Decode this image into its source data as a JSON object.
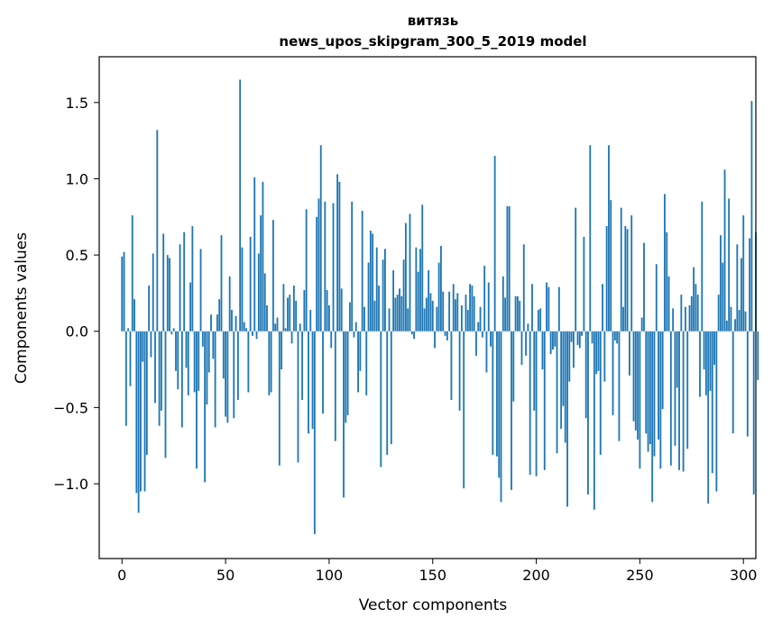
{
  "chart_data": {
    "type": "bar",
    "title": "витязь",
    "subtitle": "news_upos_skipgram_300_5_2019 model",
    "xlabel": "Vector components",
    "ylabel": "Components values",
    "xlim": [
      -11,
      306
    ],
    "ylim": [
      -1.49,
      1.8
    ],
    "xticks": [
      0,
      50,
      100,
      150,
      200,
      250,
      300
    ],
    "yticks": [
      -1.0,
      -0.5,
      0.0,
      0.5,
      1.0,
      1.5
    ],
    "xtick_labels": [
      "0",
      "50",
      "100",
      "150",
      "200",
      "250",
      "300"
    ],
    "ytick_labels": [
      "−1.0",
      "−0.5",
      "0.0",
      "0.5",
      "1.0",
      "1.5"
    ],
    "grid": false,
    "bar_color": "#1f77b4",
    "values": [
      0.49,
      0.52,
      -0.62,
      0.02,
      -0.36,
      0.76,
      0.21,
      -1.06,
      -1.19,
      -1.05,
      -0.2,
      -1.05,
      -0.81,
      0.3,
      -0.17,
      0.51,
      -0.47,
      1.32,
      -0.62,
      -0.52,
      0.64,
      -0.83,
      0.5,
      0.48,
      -0.02,
      0.02,
      -0.26,
      -0.38,
      0.57,
      -0.63,
      0.65,
      -0.24,
      -0.42,
      0.32,
      0.69,
      -0.4,
      -0.9,
      -0.39,
      0.54,
      -0.1,
      -0.99,
      -0.48,
      -0.27,
      0.11,
      -0.18,
      -0.63,
      0.11,
      0.21,
      0.63,
      -0.31,
      -0.56,
      -0.6,
      0.36,
      0.14,
      -0.57,
      0.1,
      -0.45,
      1.65,
      0.55,
      0.06,
      0.02,
      -0.4,
      0.62,
      -0.03,
      1.01,
      -0.05,
      0.51,
      0.76,
      0.98,
      0.38,
      0.17,
      -0.42,
      -0.4,
      0.73,
      0.05,
      0.09,
      -0.88,
      -0.25,
      0.31,
      0.02,
      0.22,
      0.24,
      -0.08,
      0.3,
      0.2,
      -0.86,
      0.05,
      -0.45,
      0.27,
      0.8,
      -0.67,
      0.14,
      -0.64,
      -1.33,
      0.75,
      0.87,
      1.22,
      -0.54,
      0.85,
      0.27,
      0.17,
      -0.11,
      0.84,
      -0.72,
      1.03,
      0.98,
      0.28,
      -1.09,
      -0.6,
      -0.55,
      0.19,
      0.85,
      -0.04,
      0.06,
      -0.4,
      -0.26,
      0.79,
      0.16,
      -0.42,
      0.45,
      0.66,
      0.64,
      0.2,
      0.55,
      0.3,
      -0.89,
      0.47,
      0.54,
      -0.81,
      0.15,
      -0.74,
      0.4,
      0.22,
      0.24,
      0.28,
      0.23,
      0.47,
      0.71,
      0.15,
      0.77,
      -0.02,
      -0.05,
      0.55,
      0.39,
      0.54,
      0.83,
      0.15,
      0.22,
      0.4,
      0.25,
      0.2,
      -0.11,
      0.16,
      0.45,
      0.56,
      0.26,
      -0.03,
      -0.06,
      0.26,
      -0.45,
      0.31,
      0.21,
      0.25,
      -0.52,
      0.17,
      -1.03,
      0.24,
      0.14,
      0.31,
      0.3,
      0.23,
      -0.16,
      0.06,
      0.16,
      -0.04,
      0.43,
      -0.27,
      0.32,
      -0.1,
      -0.81,
      1.15,
      -0.82,
      -0.96,
      -1.12,
      0.36,
      0.22,
      0.82,
      0.82,
      -1.04,
      -0.46,
      0.23,
      0.23,
      0.2,
      -0.22,
      0.57,
      -0.16,
      0.05,
      -0.94,
      0.31,
      -0.52,
      -0.95,
      0.14,
      0.15,
      -0.25,
      -0.91,
      0.32,
      0.29,
      -0.15,
      -0.12,
      -0.1,
      -0.8,
      0.29,
      -0.64,
      -0.49,
      -0.73,
      -1.15,
      -0.33,
      -0.07,
      -0.24,
      0.81,
      -0.09,
      -0.11,
      -0.03,
      0.62,
      -0.57,
      -1.07,
      1.22,
      -0.08,
      -1.17,
      -0.28,
      -0.26,
      -0.81,
      0.31,
      -0.33,
      0.69,
      1.22,
      0.86,
      -0.55,
      -0.06,
      -0.08,
      -0.72,
      0.81,
      0.16,
      0.69,
      0.67,
      -0.29,
      0.76,
      -0.59,
      -0.65,
      -0.71,
      -0.9,
      0.09,
      0.58,
      -0.67,
      -0.79,
      -0.74,
      -1.12,
      -0.82,
      0.44,
      -0.71,
      -0.9,
      -0.51,
      0.9,
      0.65,
      0.36,
      -0.88,
      0.15,
      -0.75,
      -0.37,
      -0.91,
      0.24,
      -0.92,
      0.16,
      -0.77,
      0.17,
      0.23,
      0.42,
      0.31,
      0.24,
      -0.43,
      0.85,
      -0.25,
      -0.42,
      -1.13,
      -0.39,
      -0.93,
      -0.22,
      -1.05,
      0.24,
      0.63,
      0.45,
      1.06,
      0.07,
      0.87,
      0.16,
      -0.67,
      0.08,
      0.57,
      0.14,
      0.48,
      0.76,
      0.13,
      -0.69,
      0.61,
      1.51,
      -1.07,
      0.65,
      -0.32
    ]
  }
}
